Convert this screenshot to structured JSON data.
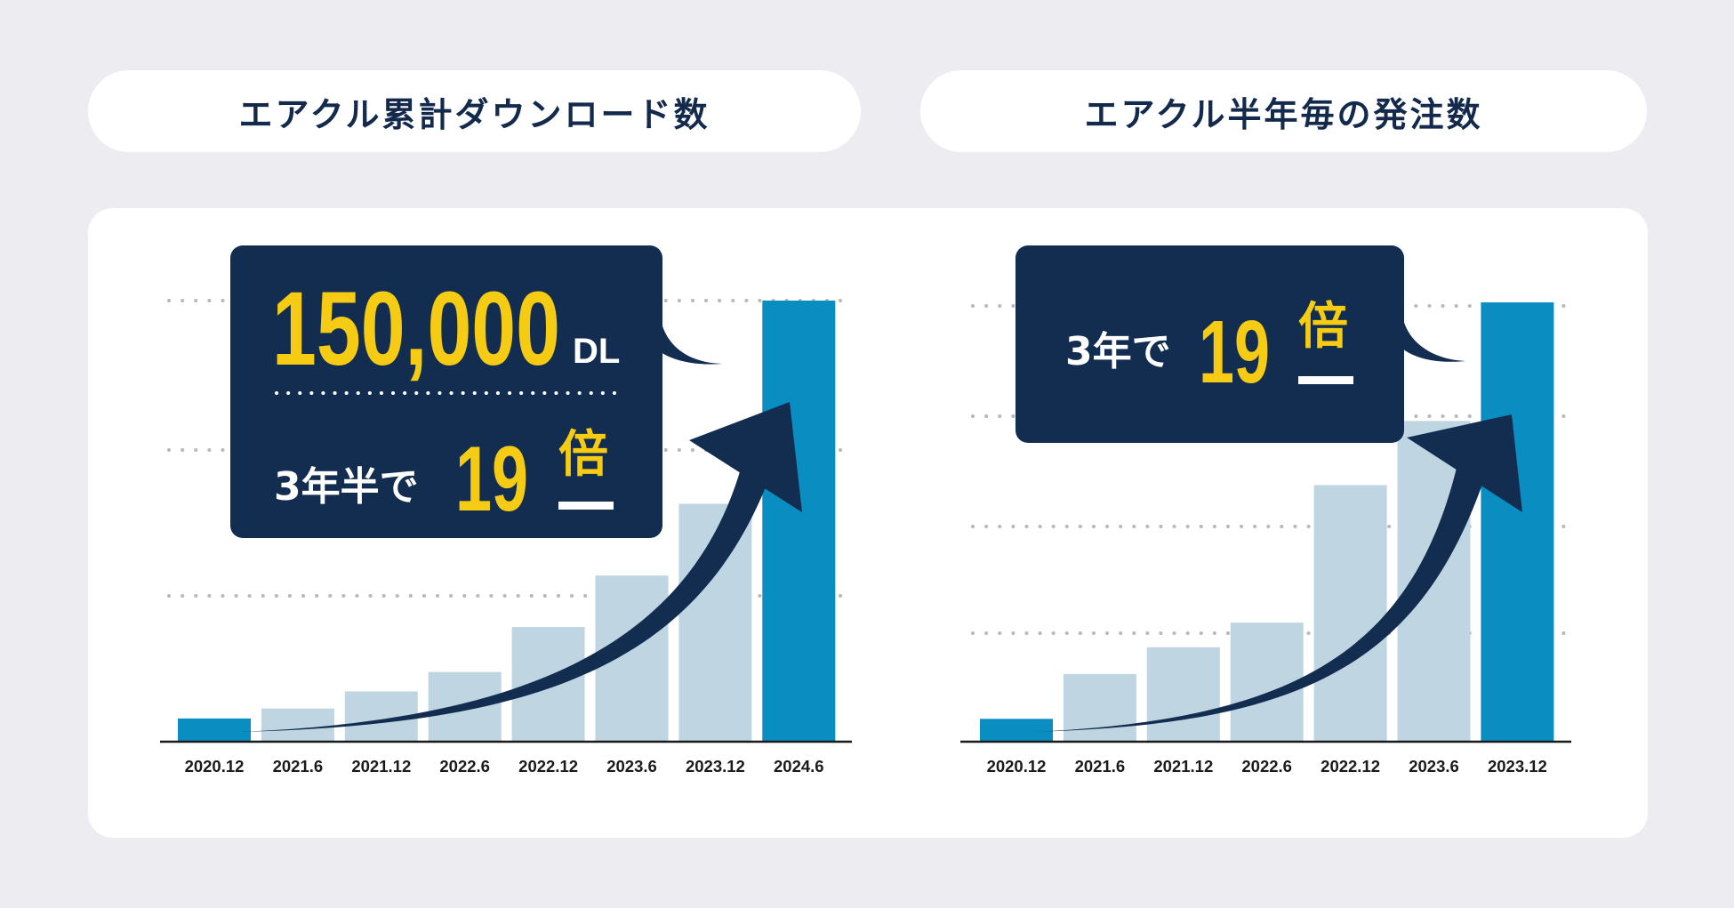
{
  "titles": {
    "left": "エアクル累計ダウンロード数",
    "right": "エアクル半年毎の発注数"
  },
  "callouts": {
    "left": {
      "number": "150,000",
      "unit": "DL",
      "prefix": "3年半で",
      "multiplier": "19",
      "suffix": "倍"
    },
    "right": {
      "prefix": "3年で",
      "multiplier": "19",
      "suffix": "倍"
    }
  },
  "colors": {
    "background": "#ededf1",
    "panel": "#ffffff",
    "navy": "#122d50",
    "highlight_bar": "#0a8dc0",
    "muted_bar": "#bfd5e2",
    "accent_yellow": "#f5cc13",
    "axis": "#1a1a1a"
  },
  "chart_data": [
    {
      "type": "bar",
      "title": "エアクル累計ダウンロード数",
      "categories": [
        "2020.12",
        "2021.6",
        "2021.12",
        "2022.6",
        "2022.12",
        "2023.6",
        "2023.12",
        "2024.6"
      ],
      "values": [
        7900,
        11300,
        17100,
        23700,
        39000,
        56500,
        80900,
        150000
      ],
      "highlight": [
        true,
        false,
        false,
        false,
        false,
        false,
        false,
        true
      ],
      "ylim": [
        0,
        150000
      ],
      "grid": true,
      "annotation": "150,000 DL / 3年半で19倍"
    },
    {
      "type": "bar",
      "title": "エアクル半年毎の発注数",
      "categories": [
        "2020.12",
        "2021.6",
        "2021.12",
        "2022.6",
        "2022.12",
        "2023.6",
        "2023.12"
      ],
      "values": [
        5.2,
        15.4,
        21.5,
        27.1,
        58.4,
        73.0,
        100
      ],
      "highlight": [
        true,
        false,
        false,
        false,
        false,
        false,
        true
      ],
      "ylim": [
        0,
        100
      ],
      "grid": true,
      "annotation": "3年で19倍"
    }
  ]
}
